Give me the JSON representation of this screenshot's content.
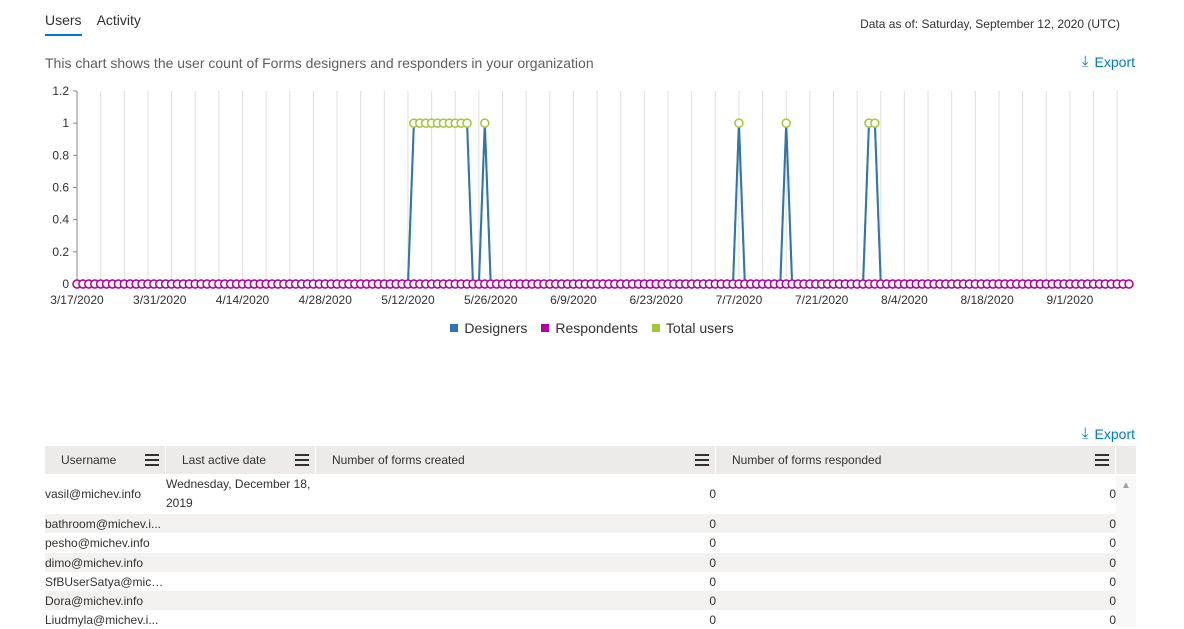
{
  "tabs": [
    {
      "label": "Users",
      "active": true
    },
    {
      "label": "Activity",
      "active": false
    }
  ],
  "data_as_of": "Data as of: Saturday, September 12, 2020 (UTC)",
  "description": "This chart shows the user count of Forms designers and responders in your organization",
  "export_label": "Export",
  "colors": {
    "designers": "#2e75b6",
    "respondents": "#b4009e",
    "total": "#a4c639",
    "accent": "#0078d4"
  },
  "chart_data": {
    "type": "line",
    "title": "",
    "xlabel": "",
    "ylabel": "",
    "ylim": [
      0,
      1.2
    ],
    "yticks": [
      "1.2",
      "1",
      "0.8",
      "0.6",
      "0.4",
      "0.2",
      "0"
    ],
    "xticks": [
      "3/17/2020",
      "3/31/2020",
      "4/14/2020",
      "4/28/2020",
      "5/12/2020",
      "5/26/2020",
      "6/9/2020",
      "6/23/2020",
      "7/7/2020",
      "7/21/2020",
      "8/4/2020",
      "8/18/2020",
      "9/1/2020"
    ],
    "x_start": "3/17/2020",
    "x_end": "9/11/2020",
    "grid": true,
    "legend": "bottom",
    "series": [
      {
        "name": "Designers",
        "color": "#2e75b6",
        "nonzero": [
          [
            "5/13/2020",
            1
          ],
          [
            "5/14/2020",
            1
          ],
          [
            "5/15/2020",
            1
          ],
          [
            "5/16/2020",
            1
          ],
          [
            "5/17/2020",
            1
          ],
          [
            "5/18/2020",
            1
          ],
          [
            "5/19/2020",
            1
          ],
          [
            "5/20/2020",
            1
          ],
          [
            "5/21/2020",
            1
          ],
          [
            "5/22/2020",
            1
          ],
          [
            "5/25/2020",
            1
          ],
          [
            "7/7/2020",
            1
          ],
          [
            "7/15/2020",
            1
          ],
          [
            "7/29/2020",
            1
          ],
          [
            "7/30/2020",
            1
          ]
        ]
      },
      {
        "name": "Respondents",
        "color": "#b4009e",
        "nonzero": []
      },
      {
        "name": "Total users",
        "color": "#a4c639",
        "nonzero": [
          [
            "5/13/2020",
            1
          ],
          [
            "5/14/2020",
            1
          ],
          [
            "5/15/2020",
            1
          ],
          [
            "5/16/2020",
            1
          ],
          [
            "5/17/2020",
            1
          ],
          [
            "5/18/2020",
            1
          ],
          [
            "5/19/2020",
            1
          ],
          [
            "5/20/2020",
            1
          ],
          [
            "5/21/2020",
            1
          ],
          [
            "5/22/2020",
            1
          ],
          [
            "5/25/2020",
            1
          ],
          [
            "7/7/2020",
            1
          ],
          [
            "7/15/2020",
            1
          ],
          [
            "7/29/2020",
            1
          ],
          [
            "7/30/2020",
            1
          ]
        ]
      }
    ]
  },
  "legend": [
    {
      "label": "Designers",
      "color": "#2e75b6"
    },
    {
      "label": "Respondents",
      "color": "#b4009e"
    },
    {
      "label": "Total users",
      "color": "#a4c639"
    }
  ],
  "table": {
    "columns": [
      "Username",
      "Last active date",
      "Number of forms created",
      "Number of forms responded"
    ],
    "rows": [
      {
        "username": "vasil@michev.info",
        "last_active": "Wednesday, December 18, 2019",
        "created": "0",
        "responded": "0"
      },
      {
        "username": "bathroom@michev.i...",
        "last_active": "",
        "created": "0",
        "responded": "0"
      },
      {
        "username": "pesho@michev.info",
        "last_active": "",
        "created": "0",
        "responded": "0"
      },
      {
        "username": "dimo@michev.info",
        "last_active": "",
        "created": "0",
        "responded": "0"
      },
      {
        "username": "SfBUserSatya@mich...",
        "last_active": "",
        "created": "0",
        "responded": "0"
      },
      {
        "username": "Dora@michev.info",
        "last_active": "",
        "created": "0",
        "responded": "0"
      },
      {
        "username": "Liudmyla@michev.i...",
        "last_active": "",
        "created": "0",
        "responded": "0"
      }
    ]
  }
}
